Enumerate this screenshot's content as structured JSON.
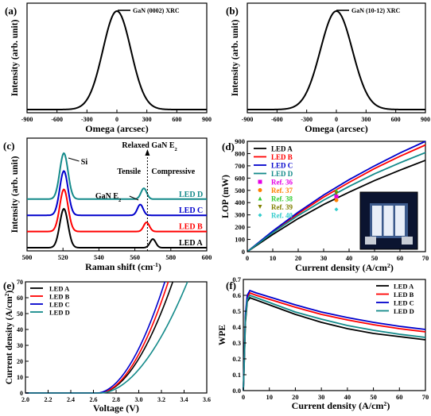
{
  "chart_data": [
    {
      "panel": "(a)",
      "type": "line",
      "legend": "GaN (0002) XRC",
      "xlabel": "Omega (arcsec)",
      "ylabel": "Intensity (arb. unit)",
      "xlim": [
        -900,
        900
      ],
      "xticks": [
        "-900",
        "-600",
        "-300",
        "0",
        "300",
        "600",
        "900"
      ],
      "series": [
        {
          "name": "GaN (0002) XRC",
          "peak_x": 0,
          "fwhm_arcsec": 330,
          "color": "#000000"
        }
      ]
    },
    {
      "panel": "(b)",
      "type": "line",
      "legend": "GaN (10-12) XRC",
      "xlabel": "Omega (arcsec)",
      "ylabel": "Intensity (arb. unit)",
      "xlim": [
        -900,
        900
      ],
      "xticks": [
        "-900",
        "-600",
        "-300",
        "0",
        "300",
        "600",
        "900"
      ],
      "series": [
        {
          "name": "GaN (10-12) XRC",
          "peak_x": 0,
          "fwhm_arcsec": 380,
          "color": "#000000"
        }
      ]
    },
    {
      "panel": "(c)",
      "type": "line",
      "xlabel": "Raman shift (cm",
      "xlabel_sup": "-1",
      "xlabel_end": ")",
      "ylabel": "Intensity (arb. unit)",
      "xlim": [
        500,
        600
      ],
      "xticks": [
        "500",
        "520",
        "540",
        "560",
        "580",
        "600"
      ],
      "annotations": {
        "si": "Si",
        "ganE2": "GaN E",
        "ganE2_sub": "2",
        "relaxed": "Relaxed GaN E",
        "relaxed_sub": "2",
        "tensile": "Tensile",
        "compressive": "Compressive",
        "relaxed_x": 567
      },
      "series": [
        {
          "name": "LED A",
          "offset": 0,
          "si_peak": 520.5,
          "si_height": 0.72,
          "gan_peak": 570,
          "gan_height": 0.16,
          "color": "#000000"
        },
        {
          "name": "LED B",
          "offset": 0.3,
          "si_peak": 520.5,
          "si_height": 0.78,
          "gan_peak": 566.5,
          "gan_height": 0.17,
          "color": "#ff0000"
        },
        {
          "name": "LED C",
          "offset": 0.6,
          "si_peak": 520.5,
          "si_height": 0.82,
          "gan_peak": 563,
          "gan_height": 0.2,
          "color": "#0000cc"
        },
        {
          "name": "LED D",
          "offset": 0.9,
          "si_peak": 520.5,
          "si_height": 0.85,
          "gan_peak": 565,
          "gan_height": 0.2,
          "color": "#138a8a"
        }
      ]
    },
    {
      "panel": "(d)",
      "type": "line",
      "xlabel": "Current density (A/cm",
      "xlabel_sup": "2",
      "xlabel_end": ")",
      "ylabel": "LOP (mW)",
      "xlim": [
        0,
        70
      ],
      "ylim": [
        0,
        900
      ],
      "xticks": [
        "0",
        "10",
        "20",
        "30",
        "40",
        "50",
        "60",
        "70"
      ],
      "yticks": [
        "0",
        "100",
        "200",
        "300",
        "400",
        "500",
        "600",
        "700",
        "800",
        "900"
      ],
      "series": [
        {
          "name": "LED A",
          "x": [
            0,
            10,
            20,
            30,
            40,
            50,
            60,
            70
          ],
          "y": [
            0,
            140,
            270,
            385,
            485,
            580,
            665,
            745
          ],
          "color": "#000000"
        },
        {
          "name": "LED B",
          "x": [
            0,
            10,
            20,
            30,
            40,
            50,
            60,
            70
          ],
          "y": [
            0,
            162,
            310,
            445,
            565,
            678,
            778,
            870
          ],
          "color": "#ff0000"
        },
        {
          "name": "LED C",
          "x": [
            0,
            10,
            20,
            30,
            40,
            50,
            60,
            70
          ],
          "y": [
            0,
            168,
            322,
            462,
            587,
            700,
            805,
            900
          ],
          "color": "#0000cc"
        },
        {
          "name": "LED D",
          "x": [
            0,
            10,
            20,
            30,
            40,
            50,
            60,
            70
          ],
          "y": [
            0,
            155,
            295,
            420,
            532,
            635,
            725,
            808
          ],
          "color": "#138a8a"
        }
      ],
      "references": [
        {
          "name": "Ref. 36",
          "x": 35,
          "y": 450,
          "marker": "square",
          "color": "#e400e4"
        },
        {
          "name": "Ref. 37",
          "x": 35,
          "y": 420,
          "marker": "circle",
          "color": "#ff8000"
        },
        {
          "name": "Ref. 38",
          "x": 35,
          "y": 500,
          "marker": "triangle-up",
          "color": "#33cc33"
        },
        {
          "name": "Ref. 39",
          "x": 35,
          "y": 475,
          "marker": "triangle-down",
          "color": "#808000"
        },
        {
          "name": "Ref. 40",
          "x": 35,
          "y": 345,
          "marker": "diamond",
          "color": "#33cccc"
        }
      ],
      "legend_position": "top-left",
      "inset": "device-photo"
    },
    {
      "panel": "(e)",
      "type": "line",
      "xlabel": "Voltage (V)",
      "ylabel": "Current density (A/cm",
      "ylabel_sup": "2",
      "ylabel_end": ")",
      "xlim": [
        2.0,
        3.6
      ],
      "ylim": [
        0,
        70
      ],
      "xticks": [
        "2.0",
        "2.2",
        "2.4",
        "2.6",
        "2.8",
        "3.0",
        "3.2",
        "3.4",
        "3.6"
      ],
      "yticks": [
        "0",
        "10",
        "20",
        "30",
        "40",
        "50",
        "60",
        "70"
      ],
      "series": [
        {
          "name": "LED A",
          "v_on": 2.65,
          "v_at_70": 3.3,
          "color": "#000000"
        },
        {
          "name": "LED B",
          "v_on": 2.65,
          "v_at_70": 3.26,
          "color": "#ff0000"
        },
        {
          "name": "LED C",
          "v_on": 2.63,
          "v_at_70": 3.23,
          "color": "#0000cc"
        },
        {
          "name": "LED D",
          "v_on": 2.66,
          "v_at_70": 3.43,
          "color": "#138a8a"
        }
      ],
      "legend_position": "top-left"
    },
    {
      "panel": "(f)",
      "type": "line",
      "xlabel": "Current density (A/cm",
      "xlabel_sup": "2",
      "xlabel_end": ")",
      "ylabel": "WPE",
      "xlim": [
        0,
        70
      ],
      "ylim": [
        0,
        0.7
      ],
      "xticks": [
        "0",
        "10",
        "20",
        "30",
        "40",
        "50",
        "60",
        "70"
      ],
      "yticks": [
        "0.0",
        "0.1",
        "0.2",
        "0.3",
        "0.4",
        "0.5",
        "0.6",
        "0.7"
      ],
      "series": [
        {
          "name": "LED A",
          "x": [
            0,
            0.3,
            0.8,
            1.5,
            2.5,
            5,
            10,
            20,
            30,
            40,
            50,
            60,
            70
          ],
          "y": [
            0,
            0.15,
            0.43,
            0.56,
            0.585,
            0.57,
            0.54,
            0.48,
            0.43,
            0.39,
            0.36,
            0.34,
            0.32
          ],
          "color": "#000000"
        },
        {
          "name": "LED B",
          "x": [
            0,
            0.3,
            0.8,
            1.5,
            2.5,
            5,
            10,
            20,
            30,
            40,
            50,
            60,
            70
          ],
          "y": [
            0,
            0.16,
            0.46,
            0.59,
            0.615,
            0.6,
            0.575,
            0.525,
            0.48,
            0.445,
            0.415,
            0.39,
            0.37
          ],
          "color": "#ff0000"
        },
        {
          "name": "LED C",
          "x": [
            0,
            0.3,
            0.8,
            1.5,
            2.5,
            5,
            10,
            20,
            30,
            40,
            50,
            60,
            70
          ],
          "y": [
            0,
            0.17,
            0.48,
            0.6,
            0.63,
            0.615,
            0.59,
            0.54,
            0.495,
            0.46,
            0.43,
            0.405,
            0.385
          ],
          "color": "#0000cc"
        },
        {
          "name": "LED D",
          "x": [
            0,
            0.3,
            0.8,
            1.5,
            2.5,
            5,
            10,
            20,
            30,
            40,
            50,
            60,
            70
          ],
          "y": [
            0,
            0.15,
            0.45,
            0.57,
            0.6,
            0.585,
            0.555,
            0.495,
            0.45,
            0.41,
            0.38,
            0.355,
            0.335
          ],
          "color": "#138a8a"
        }
      ],
      "legend_position": "top-right"
    }
  ]
}
